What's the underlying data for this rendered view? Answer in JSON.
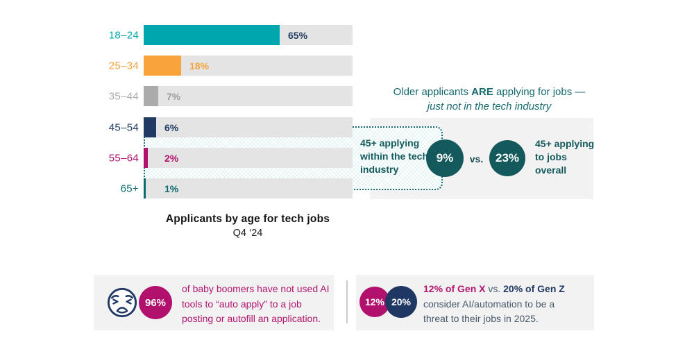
{
  "page": {
    "background": "#FFFFFF"
  },
  "colors": {
    "teal_bright": "#00A6AE",
    "orange": "#F9A33C",
    "gray": "#ABABAB",
    "navy": "#203A63",
    "magenta": "#B1116C",
    "teal_dark": "#0C6B6E",
    "circle_teal": "#14595C",
    "heading_teal": "#156A6E",
    "track_gray": "#E4E4E4",
    "box_gray": "#F2F2F2",
    "slate": "#47596B"
  },
  "chart_data": {
    "type": "bar",
    "orientation": "horizontal",
    "title": "Applicants by age for tech jobs",
    "subtitle": "Q4 ‘24",
    "categories": [
      "18–24",
      "25–34",
      "35–44",
      "45–54",
      "55–64",
      "65+"
    ],
    "values": [
      65,
      18,
      7,
      6,
      2,
      1
    ],
    "unit": "%",
    "xlim": [
      0,
      100
    ],
    "grid": false,
    "bar_colors": [
      "#00A6AE",
      "#F9A33C",
      "#ABABAB",
      "#203A63",
      "#B1116C",
      "#0C6B6E"
    ],
    "value_label_colors": [
      "#1F3A5C",
      "#F9A33C",
      "#9C9C9C",
      "#203A63",
      "#B1116C",
      "#0C6B6E"
    ],
    "track_color": "#E4E4E4",
    "callout": {
      "left_label": "45+ applying within the tech industry",
      "left_value": "9%",
      "vs": "vs.",
      "right_value": "23%",
      "right_label": "45+ applying to jobs overall"
    }
  },
  "insight": {
    "heading_pre": "Older applicants ",
    "heading_bold": "ARE",
    "heading_post": " applying for jobs —",
    "heading_line2": "just not in the tech industry"
  },
  "stats": {
    "left": {
      "value": "96%",
      "icon": "weary-face-icon",
      "lines": [
        "of baby boomers have not used AI",
        "tools to “auto apply” to a job",
        "posting or autofill an application."
      ]
    },
    "right": {
      "circle1": "12%",
      "circle2": "20%",
      "line1_genx": "12% of Gen X",
      "line1_vs": " vs. ",
      "line1_genz": "20% of Gen Z",
      "line2": "consider AI/automation to be a",
      "line3": "threat to their jobs in 2025."
    }
  }
}
